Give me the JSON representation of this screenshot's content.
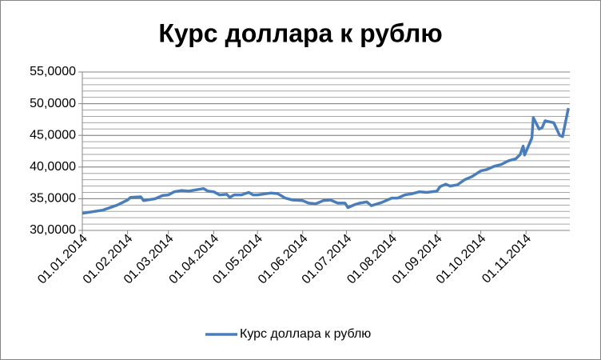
{
  "chart_data": {
    "type": "line",
    "title": "Курс доллара к рублю",
    "x": [
      "2014-01-01",
      "2014-01-15",
      "2014-01-25",
      "2014-02-01",
      "2014-02-03",
      "2014-02-10",
      "2014-02-12",
      "2014-02-20",
      "2014-02-25",
      "2014-03-01",
      "2014-03-05",
      "2014-03-10",
      "2014-03-15",
      "2014-03-25",
      "2014-03-28",
      "2014-04-01",
      "2014-04-05",
      "2014-04-10",
      "2014-04-12",
      "2014-04-15",
      "2014-04-20",
      "2014-04-25",
      "2014-04-28",
      "2014-05-01",
      "2014-05-10",
      "2014-05-15",
      "2014-05-20",
      "2014-05-25",
      "2014-06-01",
      "2014-06-05",
      "2014-06-10",
      "2014-06-15",
      "2014-06-20",
      "2014-06-25",
      "2014-06-30",
      "2014-07-02",
      "2014-07-07",
      "2014-07-10",
      "2014-07-15",
      "2014-07-18",
      "2014-07-25",
      "2014-08-01",
      "2014-08-05",
      "2014-08-10",
      "2014-08-15",
      "2014-08-20",
      "2014-08-25",
      "2014-09-01",
      "2014-09-03",
      "2014-09-07",
      "2014-09-10",
      "2014-09-15",
      "2014-09-20",
      "2014-09-25",
      "2014-10-01",
      "2014-10-05",
      "2014-10-10",
      "2014-10-15",
      "2014-10-20",
      "2014-10-25",
      "2014-10-28",
      "2014-10-30",
      "2014-10-31",
      "2014-11-05",
      "2014-11-06",
      "2014-11-10",
      "2014-11-12",
      "2014-11-14",
      "2014-11-20",
      "2014-11-24",
      "2014-11-26",
      "2014-11-30"
    ],
    "series": [
      {
        "name": "Курс доллара к рублю",
        "color": "#4a7ebb",
        "values": [
          32.7,
          33.2,
          34.0,
          34.8,
          35.2,
          35.3,
          34.7,
          35.0,
          35.5,
          35.6,
          36.1,
          36.3,
          36.2,
          36.6,
          36.2,
          36.1,
          35.6,
          35.7,
          35.2,
          35.6,
          35.6,
          36.0,
          35.6,
          35.6,
          35.9,
          35.8,
          35.1,
          34.8,
          34.7,
          34.3,
          34.2,
          34.7,
          34.8,
          34.3,
          34.3,
          33.6,
          34.1,
          34.3,
          34.5,
          33.9,
          34.4,
          35.1,
          35.1,
          35.6,
          35.8,
          36.1,
          36.0,
          36.2,
          36.9,
          37.3,
          37.0,
          37.2,
          38.0,
          38.5,
          39.4,
          39.6,
          40.1,
          40.4,
          41.0,
          41.3,
          42.0,
          43.3,
          41.9,
          44.6,
          47.8,
          46.0,
          46.2,
          47.3,
          47.0,
          45.0,
          44.8,
          49.3
        ]
      }
    ],
    "xlim": [
      "2014-01-01",
      "2014-12-01"
    ],
    "xticks": [
      {
        "value": "2014-01-01",
        "label": "01.01.2014"
      },
      {
        "value": "2014-02-01",
        "label": "01.02.2014"
      },
      {
        "value": "2014-03-01",
        "label": "01.03.2014"
      },
      {
        "value": "2014-04-01",
        "label": "01.04.2014"
      },
      {
        "value": "2014-05-01",
        "label": "01.05.2014"
      },
      {
        "value": "2014-06-01",
        "label": "01.06.2014"
      },
      {
        "value": "2014-07-01",
        "label": "01.07.2014"
      },
      {
        "value": "2014-08-01",
        "label": "01.08.2014"
      },
      {
        "value": "2014-09-01",
        "label": "01.09.2014"
      },
      {
        "value": "2014-10-01",
        "label": "01.10.2014"
      },
      {
        "value": "2014-11-01",
        "label": "01.11.2014"
      }
    ],
    "ylim": [
      30,
      55
    ],
    "yticks": [
      {
        "value": 30,
        "label": "30,0000"
      },
      {
        "value": 35,
        "label": "35,0000"
      },
      {
        "value": 40,
        "label": "40,0000"
      },
      {
        "value": 45,
        "label": "45,0000"
      },
      {
        "value": 50,
        "label": "50,0000"
      },
      {
        "value": 55,
        "label": "55,0000"
      }
    ],
    "grid": true,
    "minor_grid": 1,
    "legend": "bottom"
  }
}
